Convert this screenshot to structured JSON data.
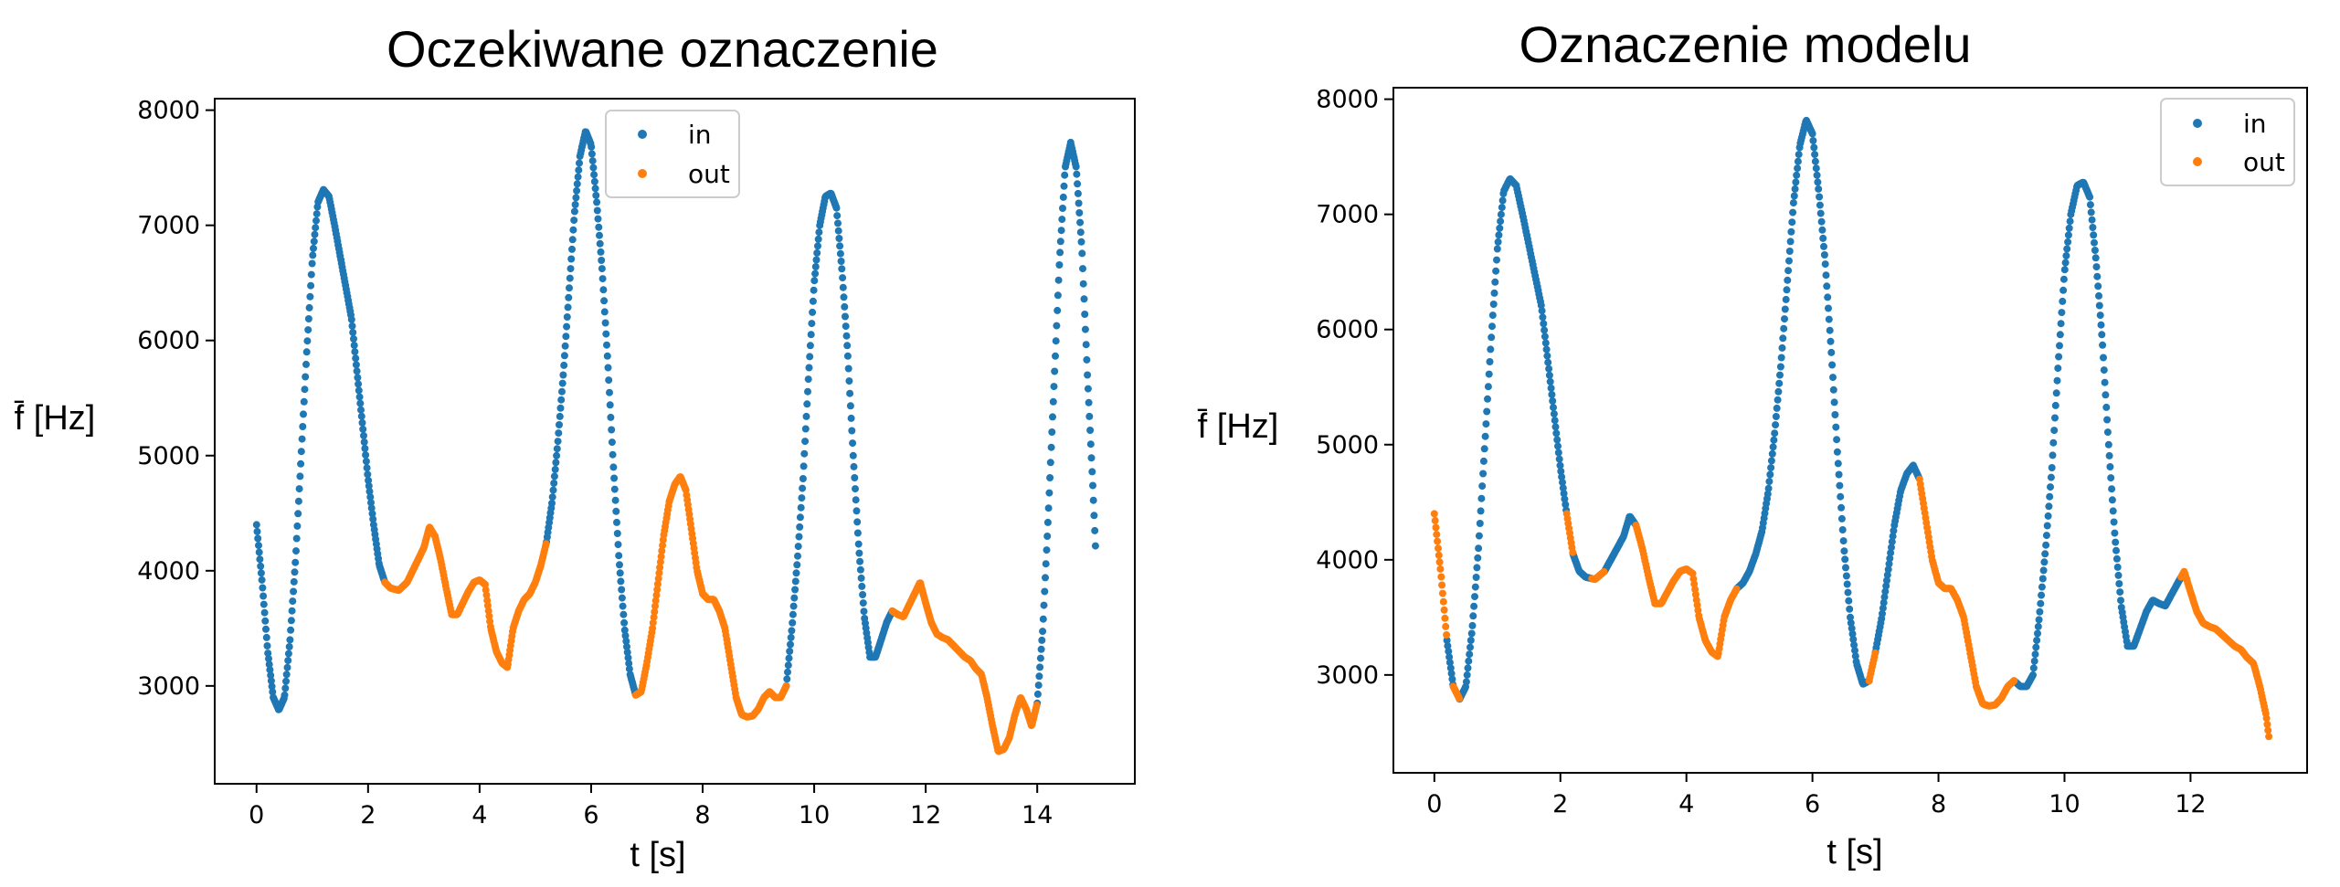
{
  "chart_data": [
    {
      "type": "scatter",
      "title": "Oczekiwane oznaczenie",
      "xlabel": "t [s]",
      "ylabel": "f̄ [Hz]",
      "xlim": [
        -0.75,
        15.75
      ],
      "ylim": [
        2150,
        8100
      ],
      "xticks": [
        0,
        2,
        4,
        6,
        8,
        10,
        12,
        14
      ],
      "yticks": [
        3000,
        4000,
        5000,
        6000,
        7000,
        8000
      ],
      "legend_position": "top-center",
      "curve": [
        [
          0.0,
          4400
        ],
        [
          0.1,
          3900
        ],
        [
          0.2,
          3300
        ],
        [
          0.3,
          2900
        ],
        [
          0.4,
          2790
        ],
        [
          0.5,
          2900
        ],
        [
          0.6,
          3400
        ],
        [
          0.7,
          4100
        ],
        [
          0.8,
          5000
        ],
        [
          0.9,
          5900
        ],
        [
          1.0,
          6700
        ],
        [
          1.1,
          7200
        ],
        [
          1.2,
          7310
        ],
        [
          1.3,
          7250
        ],
        [
          1.4,
          7000
        ],
        [
          1.55,
          6600
        ],
        [
          1.7,
          6200
        ],
        [
          1.85,
          5500
        ],
        [
          2.0,
          4800
        ],
        [
          2.1,
          4400
        ],
        [
          2.2,
          4050
        ],
        [
          2.3,
          3900
        ],
        [
          2.4,
          3850
        ],
        [
          2.55,
          3830
        ],
        [
          2.7,
          3900
        ],
        [
          2.85,
          4050
        ],
        [
          3.0,
          4200
        ],
        [
          3.1,
          4380
        ],
        [
          3.2,
          4300
        ],
        [
          3.3,
          4100
        ],
        [
          3.4,
          3850
        ],
        [
          3.5,
          3620
        ],
        [
          3.6,
          3620
        ],
        [
          3.7,
          3720
        ],
        [
          3.8,
          3820
        ],
        [
          3.9,
          3900
        ],
        [
          4.0,
          3920
        ],
        [
          4.1,
          3880
        ],
        [
          4.2,
          3500
        ],
        [
          4.3,
          3300
        ],
        [
          4.4,
          3200
        ],
        [
          4.5,
          3160
        ],
        [
          4.6,
          3500
        ],
        [
          4.7,
          3650
        ],
        [
          4.8,
          3750
        ],
        [
          4.9,
          3800
        ],
        [
          5.0,
          3900
        ],
        [
          5.1,
          4050
        ],
        [
          5.2,
          4250
        ],
        [
          5.3,
          4600
        ],
        [
          5.4,
          5100
        ],
        [
          5.5,
          5700
        ],
        [
          5.6,
          6400
        ],
        [
          5.7,
          7100
        ],
        [
          5.8,
          7600
        ],
        [
          5.9,
          7820
        ],
        [
          6.0,
          7700
        ],
        [
          6.1,
          7200
        ],
        [
          6.2,
          6600
        ],
        [
          6.3,
          5800
        ],
        [
          6.4,
          4900
        ],
        [
          6.5,
          4100
        ],
        [
          6.6,
          3500
        ],
        [
          6.7,
          3100
        ],
        [
          6.8,
          2920
        ],
        [
          6.9,
          2950
        ],
        [
          7.0,
          3200
        ],
        [
          7.1,
          3500
        ],
        [
          7.2,
          3900
        ],
        [
          7.3,
          4300
        ],
        [
          7.4,
          4600
        ],
        [
          7.5,
          4750
        ],
        [
          7.6,
          4820
        ],
        [
          7.7,
          4700
        ],
        [
          7.8,
          4350
        ],
        [
          7.9,
          4000
        ],
        [
          8.0,
          3800
        ],
        [
          8.1,
          3750
        ],
        [
          8.2,
          3750
        ],
        [
          8.3,
          3650
        ],
        [
          8.4,
          3500
        ],
        [
          8.5,
          3200
        ],
        [
          8.6,
          2900
        ],
        [
          8.7,
          2750
        ],
        [
          8.8,
          2730
        ],
        [
          8.9,
          2740
        ],
        [
          9.0,
          2800
        ],
        [
          9.1,
          2900
        ],
        [
          9.2,
          2950
        ],
        [
          9.3,
          2900
        ],
        [
          9.4,
          2900
        ],
        [
          9.5,
          3000
        ],
        [
          9.6,
          3500
        ],
        [
          9.7,
          4100
        ],
        [
          9.8,
          4800
        ],
        [
          9.9,
          5700
        ],
        [
          10.0,
          6500
        ],
        [
          10.1,
          7000
        ],
        [
          10.2,
          7250
        ],
        [
          10.3,
          7280
        ],
        [
          10.4,
          7150
        ],
        [
          10.5,
          6600
        ],
        [
          10.6,
          5900
        ],
        [
          10.7,
          5000
        ],
        [
          10.8,
          4200
        ],
        [
          10.9,
          3600
        ],
        [
          11.0,
          3250
        ],
        [
          11.1,
          3250
        ],
        [
          11.2,
          3400
        ],
        [
          11.3,
          3550
        ],
        [
          11.4,
          3650
        ],
        [
          11.5,
          3620
        ],
        [
          11.6,
          3600
        ],
        [
          11.7,
          3700
        ],
        [
          11.8,
          3800
        ],
        [
          11.9,
          3900
        ],
        [
          12.0,
          3720
        ],
        [
          12.1,
          3550
        ],
        [
          12.2,
          3450
        ],
        [
          12.3,
          3420
        ],
        [
          12.4,
          3400
        ],
        [
          12.5,
          3350
        ],
        [
          12.6,
          3300
        ],
        [
          12.7,
          3250
        ],
        [
          12.8,
          3220
        ],
        [
          12.9,
          3150
        ],
        [
          13.0,
          3100
        ],
        [
          13.1,
          2900
        ],
        [
          13.2,
          2650
        ],
        [
          13.3,
          2430
        ],
        [
          13.4,
          2450
        ],
        [
          13.5,
          2550
        ],
        [
          13.6,
          2750
        ],
        [
          13.7,
          2900
        ],
        [
          13.8,
          2800
        ],
        [
          13.9,
          2650
        ],
        [
          14.0,
          2850
        ],
        [
          14.1,
          3500
        ],
        [
          14.2,
          4500
        ],
        [
          14.3,
          5600
        ],
        [
          14.4,
          6700
        ],
        [
          14.5,
          7500
        ],
        [
          14.6,
          7720
        ],
        [
          14.7,
          7500
        ],
        [
          14.8,
          6800
        ],
        [
          14.9,
          5700
        ],
        [
          15.0,
          4700
        ],
        [
          15.05,
          4150
        ]
      ],
      "series": [
        {
          "name": "in",
          "color": "#1f77b4",
          "ranges": [
            [
              0.0,
              2.3
            ],
            [
              5.2,
              6.8
            ],
            [
              9.5,
              11.4
            ],
            [
              14.0,
              15.05
            ]
          ]
        },
        {
          "name": "out",
          "color": "#ff7f0e",
          "ranges": [
            [
              2.3,
              5.2
            ],
            [
              6.8,
              9.5
            ],
            [
              11.4,
              14.0
            ]
          ]
        }
      ]
    },
    {
      "type": "scatter",
      "title": "Oznaczenie modelu",
      "xlabel": "t [s]",
      "ylabel": "f̄ [Hz]",
      "xlim": [
        -0.65,
        13.85
      ],
      "ylim": [
        2150,
        8100
      ],
      "xticks": [
        0,
        2,
        4,
        6,
        8,
        10,
        12
      ],
      "yticks": [
        3000,
        4000,
        5000,
        6000,
        7000,
        8000
      ],
      "legend_position": "top-right",
      "curve": [
        [
          0.0,
          4400
        ],
        [
          0.1,
          3900
        ],
        [
          0.2,
          3300
        ],
        [
          0.3,
          2900
        ],
        [
          0.4,
          2790
        ],
        [
          0.5,
          2900
        ],
        [
          0.6,
          3400
        ],
        [
          0.7,
          4100
        ],
        [
          0.8,
          5000
        ],
        [
          0.9,
          5900
        ],
        [
          1.0,
          6700
        ],
        [
          1.1,
          7200
        ],
        [
          1.2,
          7310
        ],
        [
          1.3,
          7250
        ],
        [
          1.4,
          7000
        ],
        [
          1.55,
          6600
        ],
        [
          1.7,
          6200
        ],
        [
          1.85,
          5500
        ],
        [
          2.0,
          4800
        ],
        [
          2.1,
          4400
        ],
        [
          2.2,
          4050
        ],
        [
          2.3,
          3900
        ],
        [
          2.4,
          3850
        ],
        [
          2.55,
          3830
        ],
        [
          2.7,
          3900
        ],
        [
          2.85,
          4050
        ],
        [
          3.0,
          4200
        ],
        [
          3.1,
          4380
        ],
        [
          3.2,
          4300
        ],
        [
          3.3,
          4100
        ],
        [
          3.4,
          3850
        ],
        [
          3.5,
          3620
        ],
        [
          3.6,
          3620
        ],
        [
          3.7,
          3720
        ],
        [
          3.8,
          3820
        ],
        [
          3.9,
          3900
        ],
        [
          4.0,
          3920
        ],
        [
          4.1,
          3880
        ],
        [
          4.2,
          3500
        ],
        [
          4.3,
          3300
        ],
        [
          4.4,
          3200
        ],
        [
          4.5,
          3160
        ],
        [
          4.6,
          3500
        ],
        [
          4.7,
          3650
        ],
        [
          4.8,
          3750
        ],
        [
          4.9,
          3800
        ],
        [
          5.0,
          3900
        ],
        [
          5.1,
          4050
        ],
        [
          5.2,
          4250
        ],
        [
          5.3,
          4600
        ],
        [
          5.4,
          5100
        ],
        [
          5.5,
          5700
        ],
        [
          5.6,
          6400
        ],
        [
          5.7,
          7100
        ],
        [
          5.8,
          7600
        ],
        [
          5.9,
          7820
        ],
        [
          6.0,
          7700
        ],
        [
          6.1,
          7200
        ],
        [
          6.2,
          6600
        ],
        [
          6.3,
          5800
        ],
        [
          6.4,
          4900
        ],
        [
          6.5,
          4100
        ],
        [
          6.6,
          3500
        ],
        [
          6.7,
          3100
        ],
        [
          6.8,
          2920
        ],
        [
          6.9,
          2950
        ],
        [
          7.0,
          3200
        ],
        [
          7.1,
          3500
        ],
        [
          7.2,
          3900
        ],
        [
          7.3,
          4300
        ],
        [
          7.4,
          4600
        ],
        [
          7.5,
          4750
        ],
        [
          7.6,
          4820
        ],
        [
          7.7,
          4700
        ],
        [
          7.8,
          4350
        ],
        [
          7.9,
          4000
        ],
        [
          8.0,
          3800
        ],
        [
          8.1,
          3750
        ],
        [
          8.2,
          3750
        ],
        [
          8.3,
          3650
        ],
        [
          8.4,
          3500
        ],
        [
          8.5,
          3200
        ],
        [
          8.6,
          2900
        ],
        [
          8.7,
          2750
        ],
        [
          8.8,
          2730
        ],
        [
          8.9,
          2740
        ],
        [
          9.0,
          2800
        ],
        [
          9.1,
          2900
        ],
        [
          9.2,
          2950
        ],
        [
          9.3,
          2900
        ],
        [
          9.4,
          2900
        ],
        [
          9.5,
          3000
        ],
        [
          9.6,
          3500
        ],
        [
          9.7,
          4100
        ],
        [
          9.8,
          4800
        ],
        [
          9.9,
          5700
        ],
        [
          10.0,
          6500
        ],
        [
          10.1,
          7000
        ],
        [
          10.2,
          7250
        ],
        [
          10.3,
          7280
        ],
        [
          10.4,
          7150
        ],
        [
          10.5,
          6600
        ],
        [
          10.6,
          5900
        ],
        [
          10.7,
          5000
        ],
        [
          10.8,
          4200
        ],
        [
          10.9,
          3600
        ],
        [
          11.0,
          3250
        ],
        [
          11.1,
          3250
        ],
        [
          11.2,
          3400
        ],
        [
          11.3,
          3550
        ],
        [
          11.4,
          3650
        ],
        [
          11.5,
          3620
        ],
        [
          11.6,
          3600
        ],
        [
          11.7,
          3700
        ],
        [
          11.8,
          3800
        ],
        [
          11.9,
          3900
        ],
        [
          12.0,
          3720
        ],
        [
          12.1,
          3550
        ],
        [
          12.2,
          3450
        ],
        [
          12.3,
          3420
        ],
        [
          12.4,
          3400
        ],
        [
          12.5,
          3350
        ],
        [
          12.6,
          3300
        ],
        [
          12.7,
          3250
        ],
        [
          12.8,
          3220
        ],
        [
          12.9,
          3150
        ],
        [
          13.0,
          3100
        ],
        [
          13.1,
          2900
        ],
        [
          13.2,
          2650
        ],
        [
          13.25,
          2430
        ]
      ],
      "series": [
        {
          "name": "in",
          "color": "#1f77b4",
          "ranges": [
            [
              0.2,
              0.3
            ],
            [
              0.4,
              2.1
            ],
            [
              2.2,
              2.5
            ],
            [
              2.7,
              3.2
            ],
            [
              4.8,
              6.9
            ],
            [
              7.0,
              7.7
            ],
            [
              9.2,
              11.85
            ]
          ]
        },
        {
          "name": "out",
          "color": "#ff7f0e",
          "ranges": [
            [
              0.0,
              0.2
            ],
            [
              0.3,
              0.4
            ],
            [
              2.1,
              2.2
            ],
            [
              2.5,
              2.7
            ],
            [
              3.2,
              4.8
            ],
            [
              6.9,
              7.0
            ],
            [
              7.7,
              9.2
            ],
            [
              11.85,
              13.25
            ]
          ]
        }
      ]
    }
  ]
}
